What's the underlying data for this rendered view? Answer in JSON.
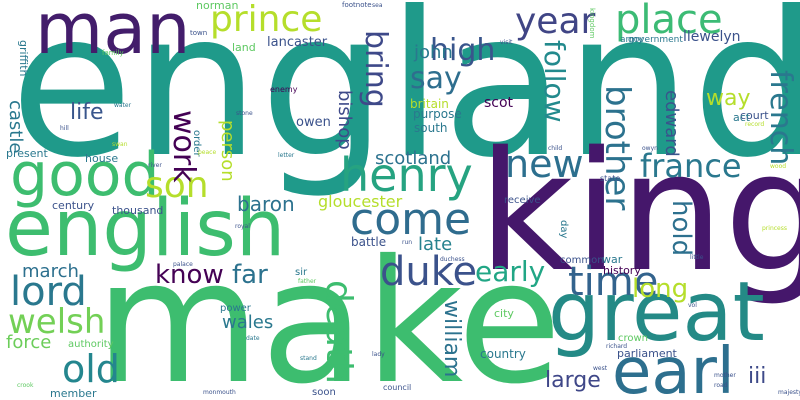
{
  "words": [
    {
      "text": "england",
      "color": "#1f9a8a",
      "size": "huge",
      "vertical": false
    },
    {
      "text": "make",
      "color": "#3dbd6f",
      "size": "huge",
      "vertical": false
    },
    {
      "text": "king",
      "color": "#45176b",
      "size": "huge",
      "vertical": false
    },
    {
      "text": "man",
      "color": "#431d6b",
      "size": "large",
      "vertical": false
    },
    {
      "text": "great",
      "color": "#248a86",
      "size": "large",
      "vertical": false
    },
    {
      "text": "english",
      "color": "#3dbd6f",
      "size": "large",
      "vertical": false
    },
    {
      "text": "good",
      "color": "#3dbd6f",
      "size": "large",
      "vertical": false
    },
    {
      "text": "henry",
      "color": "#26a381",
      "size": "large",
      "vertical": false
    },
    {
      "text": "earl",
      "color": "#2d6f8e",
      "size": "large",
      "vertical": false
    },
    {
      "text": "prince",
      "color": "#b5de2b",
      "size": "medium",
      "vertical": false
    },
    {
      "text": "year",
      "color": "#404585",
      "size": "medium",
      "vertical": false
    },
    {
      "text": "place",
      "color": "#3cbb75",
      "size": "medium",
      "vertical": false
    },
    {
      "text": "new",
      "color": "#2c6f8e",
      "size": "medium",
      "vertical": false
    },
    {
      "text": "come",
      "color": "#2f6c8e",
      "size": "medium",
      "vertical": false
    },
    {
      "text": "duke",
      "color": "#3b528b",
      "size": "medium",
      "vertical": false
    },
    {
      "text": "time",
      "color": "#33638d",
      "size": "medium",
      "vertical": false
    },
    {
      "text": "son",
      "color": "#b5de2b",
      "size": "medium",
      "vertical": false
    },
    {
      "text": "lord",
      "color": "#2a788e",
      "size": "medium",
      "vertical": false
    },
    {
      "text": "welsh",
      "color": "#73d056",
      "size": "medium",
      "vertical": false
    },
    {
      "text": "old",
      "color": "#24868e",
      "size": "medium",
      "vertical": false
    },
    {
      "text": "death",
      "color": "#3dbd6f",
      "size": "medium",
      "vertical": true
    },
    {
      "text": "brother",
      "color": "#2c728e",
      "size": "medium",
      "vertical": true
    },
    {
      "text": "france",
      "color": "#2a788e",
      "size": "medium",
      "vertical": false
    },
    {
      "text": "french",
      "color": "#2a788e",
      "size": "medium",
      "vertical": true
    },
    {
      "text": "high",
      "color": "#39558c",
      "size": "medium",
      "vertical": false
    },
    {
      "text": "work",
      "color": "#440154",
      "size": "medium",
      "vertical": true
    },
    {
      "text": "say",
      "color": "#2e6e8e",
      "size": "medium",
      "vertical": false
    },
    {
      "text": "bring",
      "color": "#3e4989",
      "size": "medium",
      "vertical": true
    },
    {
      "text": "follow",
      "color": "#238a8d",
      "size": "medium",
      "vertical": true
    },
    {
      "text": "early",
      "color": "#21a685",
      "size": "medium",
      "vertical": false
    },
    {
      "text": "long",
      "color": "#b5de2b",
      "size": "medium",
      "vertical": false
    },
    {
      "text": "hold",
      "color": "#2d708e",
      "size": "medium",
      "vertical": true
    },
    {
      "text": "know",
      "color": "#440154",
      "size": "medium",
      "vertical": false
    },
    {
      "text": "far",
      "color": "#2c728e",
      "size": "medium",
      "vertical": false
    },
    {
      "text": "william",
      "color": "#2c728e",
      "size": "medium",
      "vertical": true
    },
    {
      "text": "large",
      "color": "#3f4788",
      "size": "small",
      "vertical": false
    },
    {
      "text": "iii",
      "color": "#3e4a89",
      "size": "small",
      "vertical": false
    },
    {
      "text": "way",
      "color": "#b5de2b",
      "size": "small",
      "vertical": false
    },
    {
      "text": "life",
      "color": "#39568c",
      "size": "small",
      "vertical": false
    },
    {
      "text": "baron",
      "color": "#2c728e",
      "size": "small",
      "vertical": false
    },
    {
      "text": "scotland",
      "color": "#2c728e",
      "size": "small",
      "vertical": false
    },
    {
      "text": "gloucester",
      "color": "#b5de2b",
      "size": "small",
      "vertical": false
    },
    {
      "text": "late",
      "color": "#26828e",
      "size": "small",
      "vertical": false
    },
    {
      "text": "march",
      "color": "#2d708e",
      "size": "small",
      "vertical": false
    },
    {
      "text": "wales",
      "color": "#2a788e",
      "size": "small",
      "vertical": false
    },
    {
      "text": "force",
      "color": "#6ccd5a",
      "size": "small",
      "vertical": false
    },
    {
      "text": "castle",
      "color": "#2a788e",
      "size": "small",
      "vertical": true
    },
    {
      "text": "edward",
      "color": "#39558c",
      "size": "small",
      "vertical": true
    },
    {
      "text": "person",
      "color": "#b5de2b",
      "size": "small",
      "vertical": true
    },
    {
      "text": "bishop",
      "color": "#3e4a89",
      "size": "small",
      "vertical": true
    },
    {
      "text": "john",
      "color": "#2a788e",
      "size": "small",
      "vertical": false
    },
    {
      "text": "lancaster",
      "color": "#3b528b",
      "size": "tiny",
      "vertical": false
    },
    {
      "text": "llewelyn",
      "color": "#3b528b",
      "size": "tiny",
      "vertical": false
    },
    {
      "text": "scot",
      "color": "#440154",
      "size": "tiny",
      "vertical": false
    },
    {
      "text": "owen",
      "color": "#3b528b",
      "size": "tiny",
      "vertical": false
    },
    {
      "text": "britain",
      "color": "#b5de2b",
      "size": "tiny",
      "vertical": false
    },
    {
      "text": "purpose",
      "color": "#2a788e",
      "size": "tiny",
      "vertical": false
    },
    {
      "text": "south",
      "color": "#2a788e",
      "size": "tiny",
      "vertical": false
    },
    {
      "text": "present",
      "color": "#2a788e",
      "size": "tiny",
      "vertical": false
    },
    {
      "text": "house",
      "color": "#2a788e",
      "size": "tiny",
      "vertical": false
    },
    {
      "text": "century",
      "color": "#3b528b",
      "size": "tiny",
      "vertical": false
    },
    {
      "text": "thousand",
      "color": "#3b528b",
      "size": "tiny",
      "vertical": false
    },
    {
      "text": "receive",
      "color": "#3b528b",
      "size": "tiny",
      "vertical": false
    },
    {
      "text": "battle",
      "color": "#3b528b",
      "size": "tiny",
      "vertical": false
    },
    {
      "text": "common",
      "color": "#3b528b",
      "size": "tiny",
      "vertical": false
    },
    {
      "text": "war",
      "color": "#2a788e",
      "size": "tiny",
      "vertical": false
    },
    {
      "text": "history",
      "color": "#440154",
      "size": "tiny",
      "vertical": false
    },
    {
      "text": "country",
      "color": "#2a788e",
      "size": "tiny",
      "vertical": false
    },
    {
      "text": "parliament",
      "color": "#3b528b",
      "size": "tiny",
      "vertical": false
    },
    {
      "text": "member",
      "color": "#2a788e",
      "size": "tiny",
      "vertical": false
    },
    {
      "text": "court",
      "color": "#3b528b",
      "size": "tiny",
      "vertical": false
    },
    {
      "text": "act",
      "color": "#2a788e",
      "size": "tiny",
      "vertical": false
    },
    {
      "text": "griffith",
      "color": "#2a788e",
      "size": "tiny",
      "vertical": true
    },
    {
      "text": "norman",
      "color": "#5ec962",
      "size": "tiny",
      "vertical": false
    },
    {
      "text": "land",
      "color": "#5ec962",
      "size": "tiny",
      "vertical": false
    },
    {
      "text": "order",
      "color": "#2a788e",
      "size": "tiny",
      "vertical": true
    },
    {
      "text": "day",
      "color": "#2a788e",
      "size": "tiny",
      "vertical": true
    },
    {
      "text": "city",
      "color": "#5ec962",
      "size": "tiny",
      "vertical": false
    },
    {
      "text": "authority",
      "color": "#5ec962",
      "size": "tiny",
      "vertical": false
    },
    {
      "text": "soon",
      "color": "#3b528b",
      "size": "tiny",
      "vertical": false
    },
    {
      "text": "sir",
      "color": "#2a788e",
      "size": "tiny",
      "vertical": false
    },
    {
      "text": "power",
      "color": "#2a788e",
      "size": "tiny",
      "vertical": false
    },
    {
      "text": "crown",
      "color": "#5ec962",
      "size": "tiny",
      "vertical": false
    },
    {
      "text": "army",
      "color": "#2a788e",
      "size": "micro",
      "vertical": false
    },
    {
      "text": "government",
      "color": "#2a788e",
      "size": "micro",
      "vertical": false
    },
    {
      "text": "enemy",
      "color": "#440154",
      "size": "micro",
      "vertical": false
    },
    {
      "text": "state",
      "color": "#3b528b",
      "size": "micro",
      "vertical": false
    },
    {
      "text": "council",
      "color": "#3b528b",
      "size": "micro",
      "vertical": false
    },
    {
      "text": "footnote",
      "color": "#3b528b",
      "size": "micro",
      "vertical": false
    },
    {
      "text": "town",
      "color": "#3b528b",
      "size": "micro",
      "vertical": false
    },
    {
      "text": "family",
      "color": "#5ec962",
      "size": "micro",
      "vertical": false
    },
    {
      "text": "water",
      "color": "#2a788e",
      "size": "micro",
      "vertical": false
    },
    {
      "text": "hill",
      "color": "#3b528b",
      "size": "micro",
      "vertical": false
    },
    {
      "text": "stone",
      "color": "#3b528b",
      "size": "micro",
      "vertical": false
    },
    {
      "text": "letter",
      "color": "#2a788e",
      "size": "micro",
      "vertical": false
    },
    {
      "text": "river",
      "color": "#3b528b",
      "size": "micro",
      "vertical": false
    },
    {
      "text": "royal",
      "color": "#3b528b",
      "size": "micro",
      "vertical": false
    },
    {
      "text": "palace",
      "color": "#3b528b",
      "size": "micro",
      "vertical": false
    },
    {
      "text": "child",
      "color": "#3b528b",
      "size": "micro",
      "vertical": false
    },
    {
      "text": "visit",
      "color": "#3b528b",
      "size": "micro",
      "vertical": false
    },
    {
      "text": "sea",
      "color": "#3b528b",
      "size": "micro",
      "vertical": false
    },
    {
      "text": "kingdom",
      "color": "#5ec962",
      "size": "micro",
      "vertical": true
    },
    {
      "text": "owyn",
      "color": "#3b528b",
      "size": "micro",
      "vertical": false
    },
    {
      "text": "little",
      "color": "#3b528b",
      "size": "micro",
      "vertical": false
    },
    {
      "text": "run",
      "color": "#3b528b",
      "size": "micro",
      "vertical": false
    },
    {
      "text": "stand",
      "color": "#2a788e",
      "size": "micro",
      "vertical": false
    },
    {
      "text": "lady",
      "color": "#3b528b",
      "size": "micro",
      "vertical": false
    },
    {
      "text": "date",
      "color": "#2a788e",
      "size": "micro",
      "vertical": false
    },
    {
      "text": "father",
      "color": "#5ec962",
      "size": "micro",
      "vertical": false
    },
    {
      "text": "west",
      "color": "#3b528b",
      "size": "micro",
      "vertical": false
    },
    {
      "text": "vol",
      "color": "#3b528b",
      "size": "micro",
      "vertical": false
    },
    {
      "text": "richard",
      "color": "#3b528b",
      "size": "micro",
      "vertical": false
    },
    {
      "text": "road",
      "color": "#3b528b",
      "size": "micro",
      "vertical": false
    },
    {
      "text": "mother",
      "color": "#3b528b",
      "size": "micro",
      "vertical": false
    },
    {
      "text": "monmouth",
      "color": "#3b528b",
      "size": "micro",
      "vertical": false
    },
    {
      "text": "majesty",
      "color": "#3b528b",
      "size": "micro",
      "vertical": false
    },
    {
      "text": "duchess",
      "color": "#3b528b",
      "size": "micro",
      "vertical": false
    },
    {
      "text": "princess",
      "color": "#b5de2b",
      "size": "micro",
      "vertical": false
    },
    {
      "text": "record",
      "color": "#b5de2b",
      "size": "micro",
      "vertical": false
    },
    {
      "text": "crook",
      "color": "#5ec962",
      "size": "micro",
      "vertical": false
    },
    {
      "text": "swan",
      "color": "#b5de2b",
      "size": "micro",
      "vertical": false
    },
    {
      "text": "peace",
      "color": "#b5de2b",
      "size": "micro",
      "vertical": false
    },
    {
      "text": "wood",
      "color": "#b5de2b",
      "size": "micro",
      "vertical": false
    }
  ]
}
